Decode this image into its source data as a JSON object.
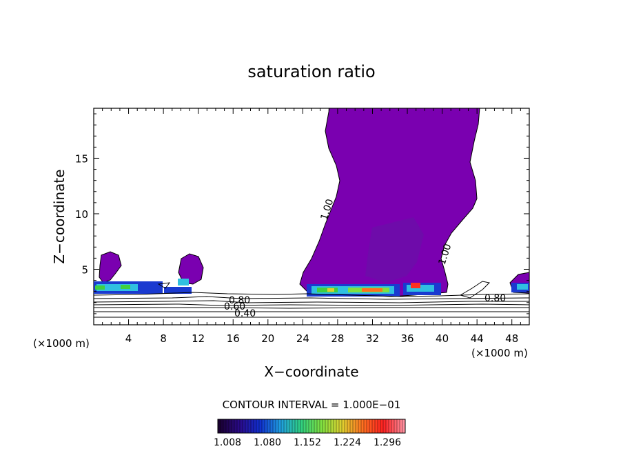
{
  "chart_data": {
    "type": "heatmap",
    "title": "saturation ratio",
    "xlabel": "X−coordinate",
    "ylabel": "Z−coordinate",
    "x_unit_left": "(×1000 m)",
    "x_unit_right": "(×1000 m)",
    "xlim": [
      0,
      50
    ],
    "ylim": [
      0,
      19.5
    ],
    "x_ticks": [
      "4",
      "8",
      "12",
      "16",
      "20",
      "24",
      "28",
      "32",
      "36",
      "40",
      "44",
      "48"
    ],
    "y_ticks": [
      "5",
      "10",
      "15"
    ],
    "contour_interval_text": "CONTOUR INTERVAL = 1.000E−01",
    "contour_labels": [
      "1.00",
      "1.00",
      "0.80",
      "0.80",
      "0.60",
      "0.40"
    ],
    "colorbar": {
      "ticks": [
        "1.008",
        "1.080",
        "1.152",
        "1.224",
        "1.296"
      ],
      "colors": [
        "#1a0030",
        "#2a0a8a",
        "#1030d0",
        "#20a0e0",
        "#30d080",
        "#80e040",
        "#e0d030",
        "#ff7020",
        "#ff2020",
        "#ff90a0"
      ]
    },
    "colors": {
      "cloud": "#7a00b0",
      "cloud_dark": "#6410a8",
      "core_blue": "#1a3ad0",
      "core_cyan": "#30c0e0",
      "core_green": "#40d040",
      "core_red": "#ff3020"
    }
  }
}
